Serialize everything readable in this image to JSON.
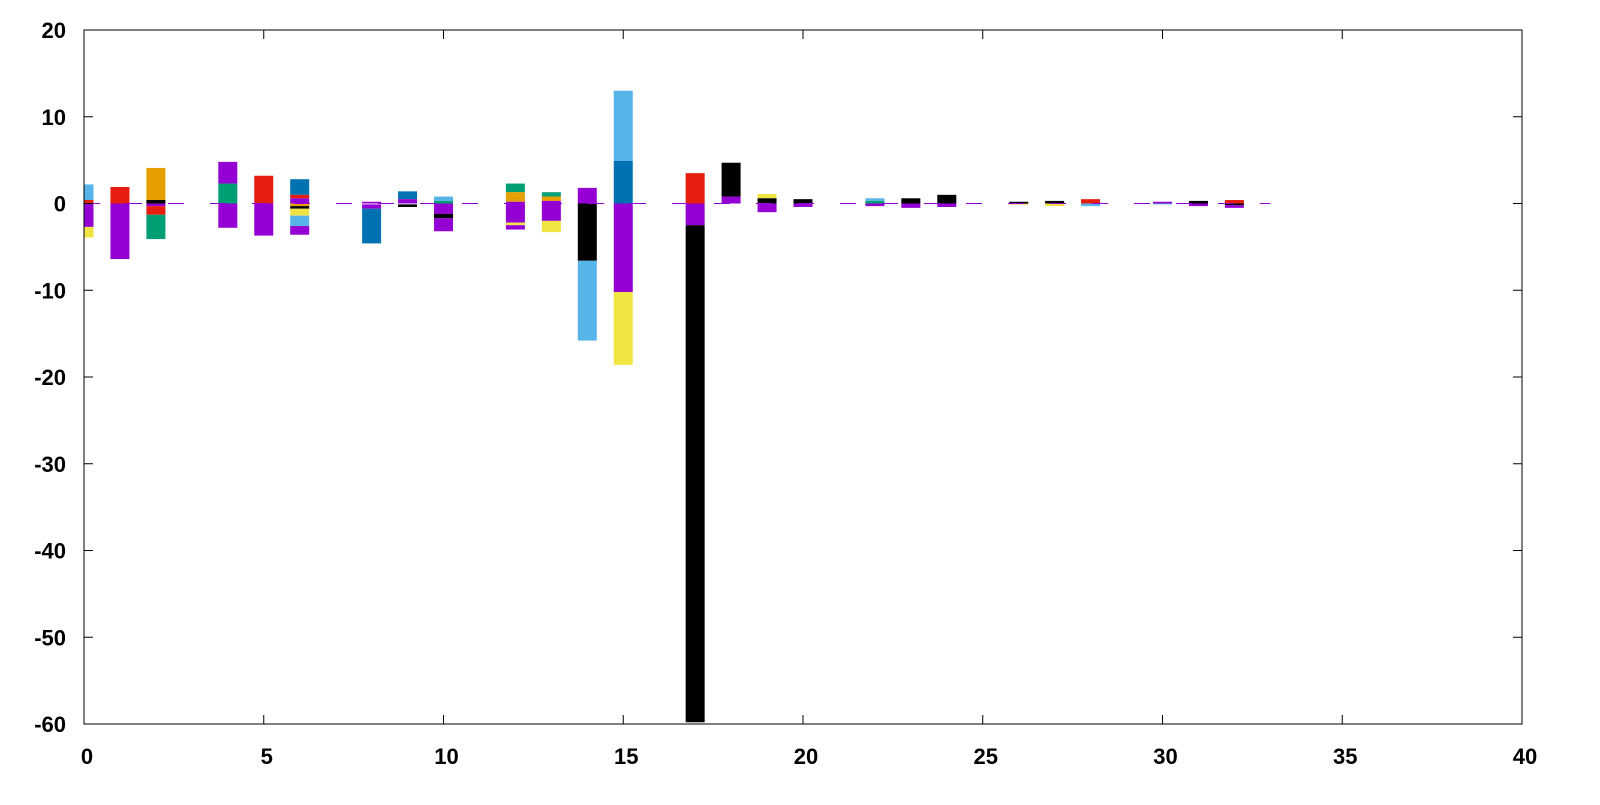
{
  "chart_data": {
    "type": "bar",
    "title": "",
    "xlabel": "",
    "ylabel": "",
    "xlim": [
      0,
      40
    ],
    "ylim": [
      -60,
      20
    ],
    "x_ticks": [
      0,
      5,
      10,
      15,
      20,
      25,
      30,
      35,
      40
    ],
    "y_ticks": [
      20,
      10,
      0,
      -10,
      -20,
      -30,
      -40,
      -50,
      -60
    ],
    "x_tick_labels": [
      "0",
      "5",
      "10",
      "15",
      "20",
      "25",
      "30",
      "35",
      "40"
    ],
    "y_tick_labels": [
      "20",
      "10",
      "0",
      "-10",
      "-20",
      "-30",
      "-40",
      "-50",
      "-60"
    ],
    "grid": false,
    "legend": false,
    "zero_line": {
      "style": "dashed",
      "color": "#9400d3",
      "x_range": [
        0,
        33
      ]
    },
    "segments": [
      {
        "x": 0,
        "y0": 0,
        "y1": 2.2,
        "color": "#56b4e9"
      },
      {
        "x": 0,
        "y0": 0,
        "y1": 0.4,
        "color": "#e51e10"
      },
      {
        "x": 0,
        "y0": 0,
        "y1": -2.7,
        "color": "#9400d3"
      },
      {
        "x": 0,
        "y0": -2.7,
        "y1": -3.9,
        "color": "#f0e442"
      },
      {
        "x": 1,
        "y0": 0,
        "y1": 1.9,
        "color": "#e51e10"
      },
      {
        "x": 1,
        "y0": 0,
        "y1": -6.4,
        "color": "#9400d3"
      },
      {
        "x": 2,
        "y0": 0.4,
        "y1": 4.1,
        "color": "#e69f00"
      },
      {
        "x": 2,
        "y0": 0,
        "y1": 0.4,
        "color": "#000000"
      },
      {
        "x": 2,
        "y0": 0,
        "y1": -0.3,
        "color": "#9400d3"
      },
      {
        "x": 2,
        "y0": -0.3,
        "y1": -1.3,
        "color": "#e51e10"
      },
      {
        "x": 2,
        "y0": -1.3,
        "y1": -4.1,
        "color": "#009e73"
      },
      {
        "x": 4,
        "y0": 2.3,
        "y1": 4.8,
        "color": "#9400d3"
      },
      {
        "x": 4,
        "y0": 0,
        "y1": 2.3,
        "color": "#009e73"
      },
      {
        "x": 4,
        "y0": 0,
        "y1": -2.8,
        "color": "#9400d3"
      },
      {
        "x": 5,
        "y0": 0,
        "y1": 3.2,
        "color": "#e51e10"
      },
      {
        "x": 5,
        "y0": 0,
        "y1": -3.7,
        "color": "#9400d3"
      },
      {
        "x": 6,
        "y0": 1.0,
        "y1": 2.8,
        "color": "#0072b2"
      },
      {
        "x": 6,
        "y0": 0.6,
        "y1": 1.0,
        "color": "#e51e10"
      },
      {
        "x": 6,
        "y0": 0,
        "y1": 0.6,
        "color": "#9400d3"
      },
      {
        "x": 6,
        "y0": 0,
        "y1": -0.3,
        "color": "#e69f00"
      },
      {
        "x": 6,
        "y0": -0.3,
        "y1": -0.6,
        "color": "#000000"
      },
      {
        "x": 6,
        "y0": -0.6,
        "y1": -1.4,
        "color": "#f0e442"
      },
      {
        "x": 6,
        "y0": -1.4,
        "y1": -2.6,
        "color": "#56b4e9"
      },
      {
        "x": 6,
        "y0": -2.6,
        "y1": -3.6,
        "color": "#9400d3"
      },
      {
        "x": 8,
        "y0": 0,
        "y1": 0.2,
        "color": "#9400d3"
      },
      {
        "x": 8,
        "y0": -0.1,
        "y1": -0.6,
        "color": "#9400d3"
      },
      {
        "x": 8,
        "y0": -0.6,
        "y1": -4.6,
        "color": "#0072b2"
      },
      {
        "x": 9,
        "y0": 0.5,
        "y1": 1.4,
        "color": "#0072b2"
      },
      {
        "x": 9,
        "y0": 0,
        "y1": 0.5,
        "color": "#9400d3"
      },
      {
        "x": 9,
        "y0": -0.1,
        "y1": -0.4,
        "color": "#000000"
      },
      {
        "x": 10,
        "y0": 0.3,
        "y1": 0.8,
        "color": "#56b4e9"
      },
      {
        "x": 10,
        "y0": 0,
        "y1": 0.3,
        "color": "#009e73"
      },
      {
        "x": 10,
        "y0": 0,
        "y1": -1.2,
        "color": "#9400d3"
      },
      {
        "x": 10,
        "y0": -1.2,
        "y1": -1.7,
        "color": "#000000"
      },
      {
        "x": 10,
        "y0": -1.7,
        "y1": -3.2,
        "color": "#9400d3"
      },
      {
        "x": 12,
        "y0": 1.3,
        "y1": 2.3,
        "color": "#009e73"
      },
      {
        "x": 12,
        "y0": 0.2,
        "y1": 1.3,
        "color": "#e69f00"
      },
      {
        "x": 12,
        "y0": 0,
        "y1": 0.2,
        "color": "#9400d3"
      },
      {
        "x": 12,
        "y0": 0,
        "y1": -2.2,
        "color": "#9400d3"
      },
      {
        "x": 12,
        "y0": -2.2,
        "y1": -2.5,
        "color": "#f0e442"
      },
      {
        "x": 12,
        "y0": -2.5,
        "y1": -3.0,
        "color": "#9400d3"
      },
      {
        "x": 13,
        "y0": 0.8,
        "y1": 1.3,
        "color": "#009e73"
      },
      {
        "x": 13,
        "y0": 0.3,
        "y1": 0.8,
        "color": "#e69f00"
      },
      {
        "x": 13,
        "y0": 0,
        "y1": 0.3,
        "color": "#9400d3"
      },
      {
        "x": 13,
        "y0": 0,
        "y1": -2.0,
        "color": "#9400d3"
      },
      {
        "x": 13,
        "y0": -2.0,
        "y1": -3.3,
        "color": "#f0e442"
      },
      {
        "x": 14,
        "y0": 0,
        "y1": 1.8,
        "color": "#9400d3"
      },
      {
        "x": 14,
        "y0": 0,
        "y1": -6.6,
        "color": "#000000"
      },
      {
        "x": 14,
        "y0": -6.6,
        "y1": -15.8,
        "color": "#56b4e9"
      },
      {
        "x": 15,
        "y0": 4.9,
        "y1": 13.0,
        "color": "#56b4e9"
      },
      {
        "x": 15,
        "y0": 0,
        "y1": 4.9,
        "color": "#0072b2"
      },
      {
        "x": 15,
        "y0": 0,
        "y1": -10.2,
        "color": "#9400d3"
      },
      {
        "x": 15,
        "y0": -10.2,
        "y1": -18.6,
        "color": "#f0e442"
      },
      {
        "x": 17,
        "y0": 0,
        "y1": 3.5,
        "color": "#e51e10"
      },
      {
        "x": 17,
        "y0": 0,
        "y1": -2.5,
        "color": "#9400d3"
      },
      {
        "x": 17,
        "y0": -2.5,
        "y1": -59.8,
        "color": "#000000"
      },
      {
        "x": 18,
        "y0": 0.8,
        "y1": 4.7,
        "color": "#000000"
      },
      {
        "x": 18,
        "y0": 0,
        "y1": 0.8,
        "color": "#9400d3"
      },
      {
        "x": 19,
        "y0": 0.6,
        "y1": 1.1,
        "color": "#f0e442"
      },
      {
        "x": 19,
        "y0": 0,
        "y1": 0.6,
        "color": "#000000"
      },
      {
        "x": 19,
        "y0": 0,
        "y1": -1.0,
        "color": "#9400d3"
      },
      {
        "x": 20,
        "y0": 0,
        "y1": 0.5,
        "color": "#000000"
      },
      {
        "x": 20,
        "y0": 0,
        "y1": -0.4,
        "color": "#9400d3"
      },
      {
        "x": 22,
        "y0": 0.3,
        "y1": 0.6,
        "color": "#56b4e9"
      },
      {
        "x": 22,
        "y0": 0,
        "y1": 0.3,
        "color": "#009e73"
      },
      {
        "x": 22,
        "y0": 0,
        "y1": -0.3,
        "color": "#9400d3"
      },
      {
        "x": 23,
        "y0": 0,
        "y1": 0.6,
        "color": "#000000"
      },
      {
        "x": 23,
        "y0": 0,
        "y1": -0.5,
        "color": "#9400d3"
      },
      {
        "x": 24,
        "y0": 0,
        "y1": 1.0,
        "color": "#000000"
      },
      {
        "x": 24,
        "y0": 0,
        "y1": -0.4,
        "color": "#9400d3"
      },
      {
        "x": 26,
        "y0": 0,
        "y1": 0.2,
        "color": "#000000"
      },
      {
        "x": 26,
        "y0": 0,
        "y1": -0.1,
        "color": "#e69f00"
      },
      {
        "x": 27,
        "y0": 0,
        "y1": 0.3,
        "color": "#000000"
      },
      {
        "x": 27,
        "y0": 0,
        "y1": -0.3,
        "color": "#f0e442"
      },
      {
        "x": 28,
        "y0": 0,
        "y1": 0.5,
        "color": "#e51e10"
      },
      {
        "x": 28,
        "y0": 0,
        "y1": -0.3,
        "color": "#56b4e9"
      },
      {
        "x": 30,
        "y0": 0,
        "y1": 0.2,
        "color": "#9400d3"
      },
      {
        "x": 30,
        "y0": 0,
        "y1": -0.1,
        "color": "#56b4e9"
      },
      {
        "x": 31,
        "y0": 0,
        "y1": 0.3,
        "color": "#000000"
      },
      {
        "x": 31,
        "y0": 0,
        "y1": -0.3,
        "color": "#9400d3"
      },
      {
        "x": 32,
        "y0": 0,
        "y1": 0.4,
        "color": "#e51e10"
      },
      {
        "x": 32,
        "y0": 0,
        "y1": -0.2,
        "color": "#000000"
      },
      {
        "x": 32,
        "y0": -0.2,
        "y1": -0.5,
        "color": "#9400d3"
      }
    ]
  }
}
